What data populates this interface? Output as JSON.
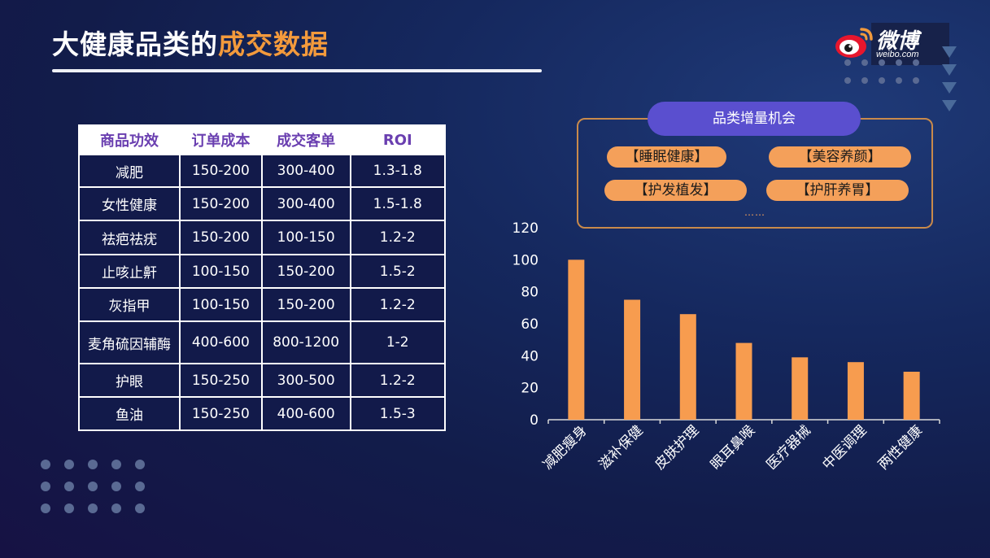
{
  "slide": {
    "title_main": "大健康品类的",
    "title_highlight": "成交数据"
  },
  "logo": {
    "text": "微博",
    "subtext": "weibo.com"
  },
  "table": {
    "headers": [
      "商品功效",
      "订单成本",
      "成交客单",
      "ROI"
    ],
    "rows": [
      [
        "减肥",
        "150-200",
        "300-400",
        "1.3-1.8"
      ],
      [
        "女性健康",
        "150-200",
        "300-400",
        "1.5-1.8"
      ],
      [
        "祛疤祛疣",
        "150-200",
        "100-150",
        "1.2-2"
      ],
      [
        "止咳止鼾",
        "100-150",
        "150-200",
        "1.5-2"
      ],
      [
        "灰指甲",
        "100-150",
        "150-200",
        "1.2-2"
      ],
      [
        "麦角硫因辅酶",
        "400-600",
        "800-1200",
        "1-2"
      ],
      [
        "护眼",
        "150-250",
        "300-500",
        "1.2-2"
      ],
      [
        "鱼油",
        "150-250",
        "400-600",
        "1.5-3"
      ]
    ]
  },
  "opportunity": {
    "title": "品类增量机会",
    "items": [
      "【睡眠健康】",
      "【美容养颜】",
      "【护发植发】",
      "【护肝养胃】"
    ],
    "more": "……"
  },
  "colors": {
    "accent": "#f39a3c",
    "bar": "#f79c4f",
    "header_text": "#6a3fb0",
    "pill_header": "#5a4fcf"
  },
  "chart_data": {
    "type": "bar",
    "categories": [
      "减肥瘦身",
      "滋补保健",
      "皮肤护理",
      "眼耳鼻喉",
      "医疗器械",
      "中医调理",
      "两性健康"
    ],
    "values": [
      100,
      75,
      66,
      48,
      39,
      36,
      30
    ],
    "ylim": [
      0,
      120
    ],
    "yticks": [
      0,
      20,
      40,
      60,
      80,
      100,
      120
    ],
    "grid": false,
    "legend": false,
    "title": "",
    "xlabel": "",
    "ylabel": ""
  }
}
